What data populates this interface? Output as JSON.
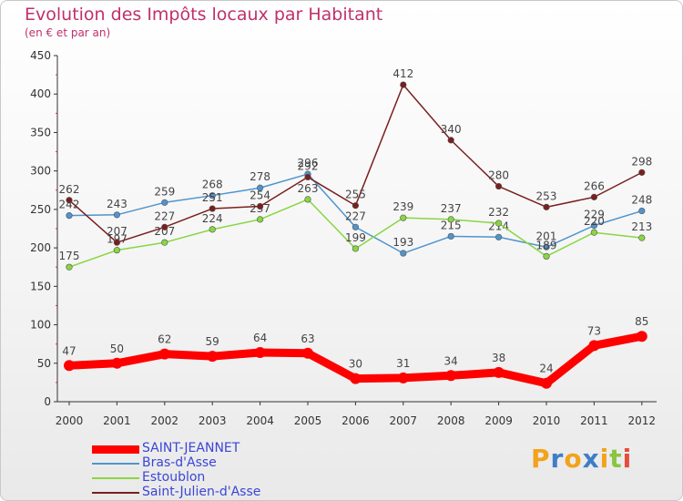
{
  "header": {
    "title": "Evolution des Impôts locaux par Habitant",
    "subtitle": "(en € et par an)"
  },
  "logo": {
    "text": "Proxiti"
  },
  "chart_data": {
    "type": "line",
    "x": [
      "2000",
      "2001",
      "2002",
      "2003",
      "2004",
      "2005",
      "2006",
      "2007",
      "2008",
      "2009",
      "2010",
      "2011",
      "2012"
    ],
    "ylim": [
      0,
      450
    ],
    "yticks": [
      "0",
      "50",
      "100",
      "150",
      "200",
      "250",
      "300",
      "350",
      "400",
      "450"
    ],
    "grid": false,
    "legend_position": "bottom-left",
    "series": [
      {
        "name": "SAINT-JEANNET",
        "color": "#ff0000",
        "values": [
          47,
          50,
          62,
          59,
          64,
          63,
          30,
          31,
          34,
          38,
          24,
          73,
          85
        ],
        "labels": [
          "47",
          "50",
          "62",
          "59",
          "64",
          "63",
          "30",
          "31",
          "34",
          "38",
          "24",
          "73",
          "85"
        ]
      },
      {
        "name": "Bras-d'Asse",
        "color": "#4f94cd",
        "values": [
          242,
          243,
          259,
          268,
          278,
          296,
          227,
          193,
          215,
          214,
          201,
          229,
          248
        ],
        "labels": [
          "242",
          "243",
          "259",
          "268",
          "278",
          "296",
          "227",
          "193",
          "215",
          "214",
          "201",
          "229",
          "248"
        ]
      },
      {
        "name": "Estoublon",
        "color": "#88d641",
        "values": [
          175,
          197,
          207,
          224,
          237,
          263,
          199,
          239,
          237,
          232,
          189,
          220,
          213
        ],
        "labels": [
          "175",
          "197",
          "207",
          "224",
          "237",
          "263",
          "199",
          "239",
          "237",
          "232",
          "189",
          "220",
          "213"
        ]
      },
      {
        "name": "Saint-Julien-d'Asse",
        "color": "#7a1f1f",
        "values": [
          262,
          207,
          227,
          251,
          254,
          292,
          255,
          412,
          340,
          280,
          253,
          266,
          298
        ],
        "labels": [
          "262",
          "207",
          "227",
          "251",
          "254",
          "292",
          "255",
          "412",
          "340",
          "280",
          "253",
          "266",
          "298"
        ]
      }
    ]
  }
}
